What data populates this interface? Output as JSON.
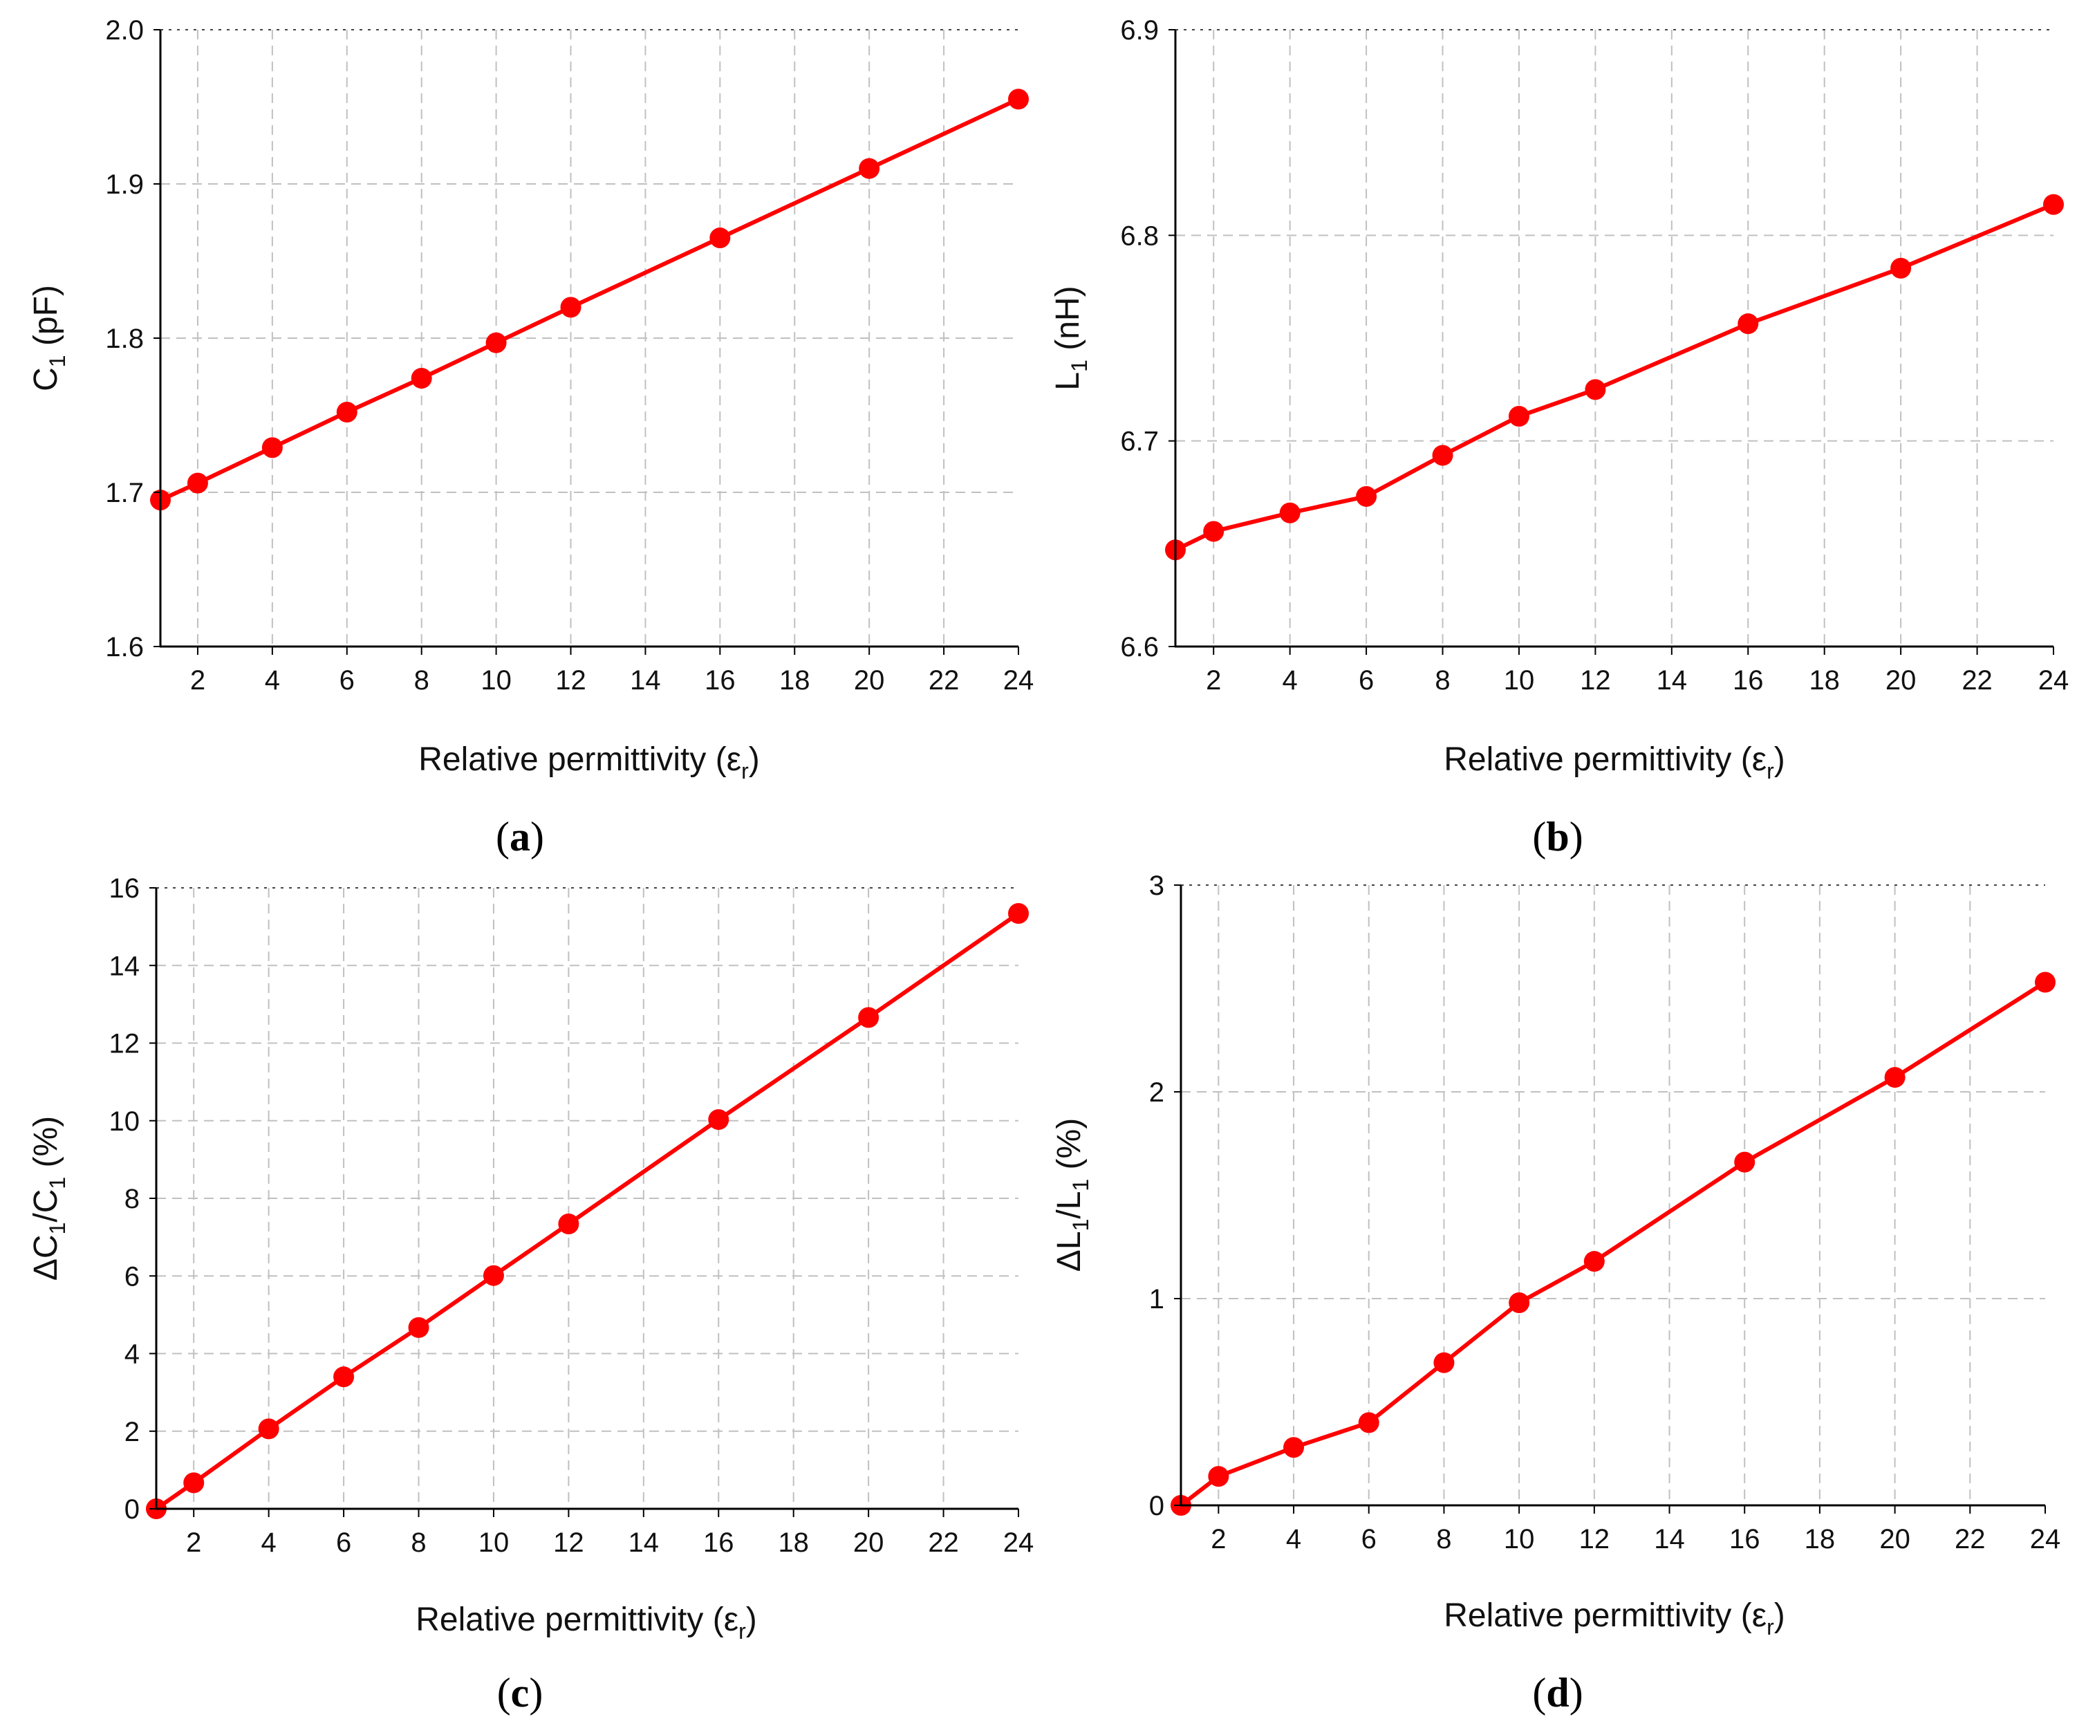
{
  "figure": {
    "series_color": "#ff0000",
    "grid_color": "#c0c0c0",
    "axis_color": "#000000"
  },
  "chart_data": [
    {
      "panel": "a",
      "type": "line",
      "caption_label": "a",
      "x": [
        1,
        2,
        4,
        6,
        8,
        10,
        12,
        16,
        20,
        24
      ],
      "y": [
        1.695,
        1.706,
        1.729,
        1.752,
        1.774,
        1.797,
        1.82,
        1.865,
        1.91,
        1.955
      ],
      "xlim": [
        1,
        24
      ],
      "ylim": [
        1.6,
        2.0
      ],
      "xticks": [
        "2",
        "4",
        "6",
        "8",
        "10",
        "12",
        "14",
        "16",
        "18",
        "20",
        "22",
        "24"
      ],
      "yticks": [
        "1.6",
        "1.7",
        "1.8",
        "1.9",
        "2.0"
      ],
      "xlabel": {
        "main": "Relative permittivity (ε",
        "sub": "r",
        "tail": ")"
      },
      "ylabel": {
        "main": "C",
        "sub": "1",
        "tail": " (pF)"
      },
      "grid": true
    },
    {
      "panel": "b",
      "type": "line",
      "caption_label": "b",
      "x": [
        1,
        2,
        4,
        6,
        8,
        10,
        12,
        16,
        20,
        24
      ],
      "y": [
        6.647,
        6.656,
        6.665,
        6.673,
        6.693,
        6.712,
        6.725,
        6.757,
        6.784,
        6.815
      ],
      "xlim": [
        1,
        24
      ],
      "ylim": [
        6.6,
        6.9
      ],
      "xticks": [
        "2",
        "4",
        "6",
        "8",
        "10",
        "12",
        "14",
        "16",
        "18",
        "20",
        "22",
        "24"
      ],
      "yticks": [
        "6.6",
        "6.7",
        "6.8",
        "6.9"
      ],
      "xlabel": {
        "main": "Relative permittivity (ε",
        "sub": "r",
        "tail": ")"
      },
      "ylabel": {
        "main": "L",
        "sub": "1",
        "tail": " (nH)"
      },
      "grid": true
    },
    {
      "panel": "c",
      "type": "line",
      "caption_label": "c",
      "x": [
        1,
        2,
        4,
        6,
        8,
        10,
        12,
        16,
        20,
        24
      ],
      "y": [
        0,
        0.67,
        2.06,
        3.4,
        4.67,
        6.01,
        7.34,
        10.03,
        12.66,
        15.34
      ],
      "xlim": [
        1,
        24
      ],
      "ylim": [
        0,
        16
      ],
      "xticks": [
        "2",
        "4",
        "6",
        "8",
        "10",
        "12",
        "14",
        "16",
        "18",
        "20",
        "22",
        "24"
      ],
      "yticks": [
        "0",
        "2",
        "4",
        "6",
        "8",
        "10",
        "12",
        "14",
        "16"
      ],
      "xlabel": {
        "main": "Relative permittivity (ε",
        "sub": "r",
        "tail": ")"
      },
      "ylabel": {
        "main": "ΔC",
        "sub": "1",
        "mid": "/C",
        "sub2": "1",
        "tail": " (%)"
      },
      "grid": true
    },
    {
      "panel": "d",
      "type": "line",
      "caption_label": "d",
      "x": [
        1,
        2,
        4,
        6,
        8,
        10,
        12,
        16,
        20,
        24
      ],
      "y": [
        0,
        0.14,
        0.28,
        0.4,
        0.69,
        0.98,
        1.18,
        1.66,
        2.07,
        2.53
      ],
      "xlim": [
        1,
        24
      ],
      "ylim": [
        0,
        3
      ],
      "xticks": [
        "2",
        "4",
        "6",
        "8",
        "10",
        "12",
        "14",
        "16",
        "18",
        "20",
        "22",
        "24"
      ],
      "yticks": [
        "0",
        "1",
        "2",
        "3"
      ],
      "xlabel": {
        "main": "Relative permittivity (ε",
        "sub": "r",
        "tail": ")"
      },
      "ylabel": {
        "main": "ΔL",
        "sub": "1",
        "mid": "/L",
        "sub2": "1",
        "tail": " (%)"
      },
      "grid": true
    }
  ]
}
